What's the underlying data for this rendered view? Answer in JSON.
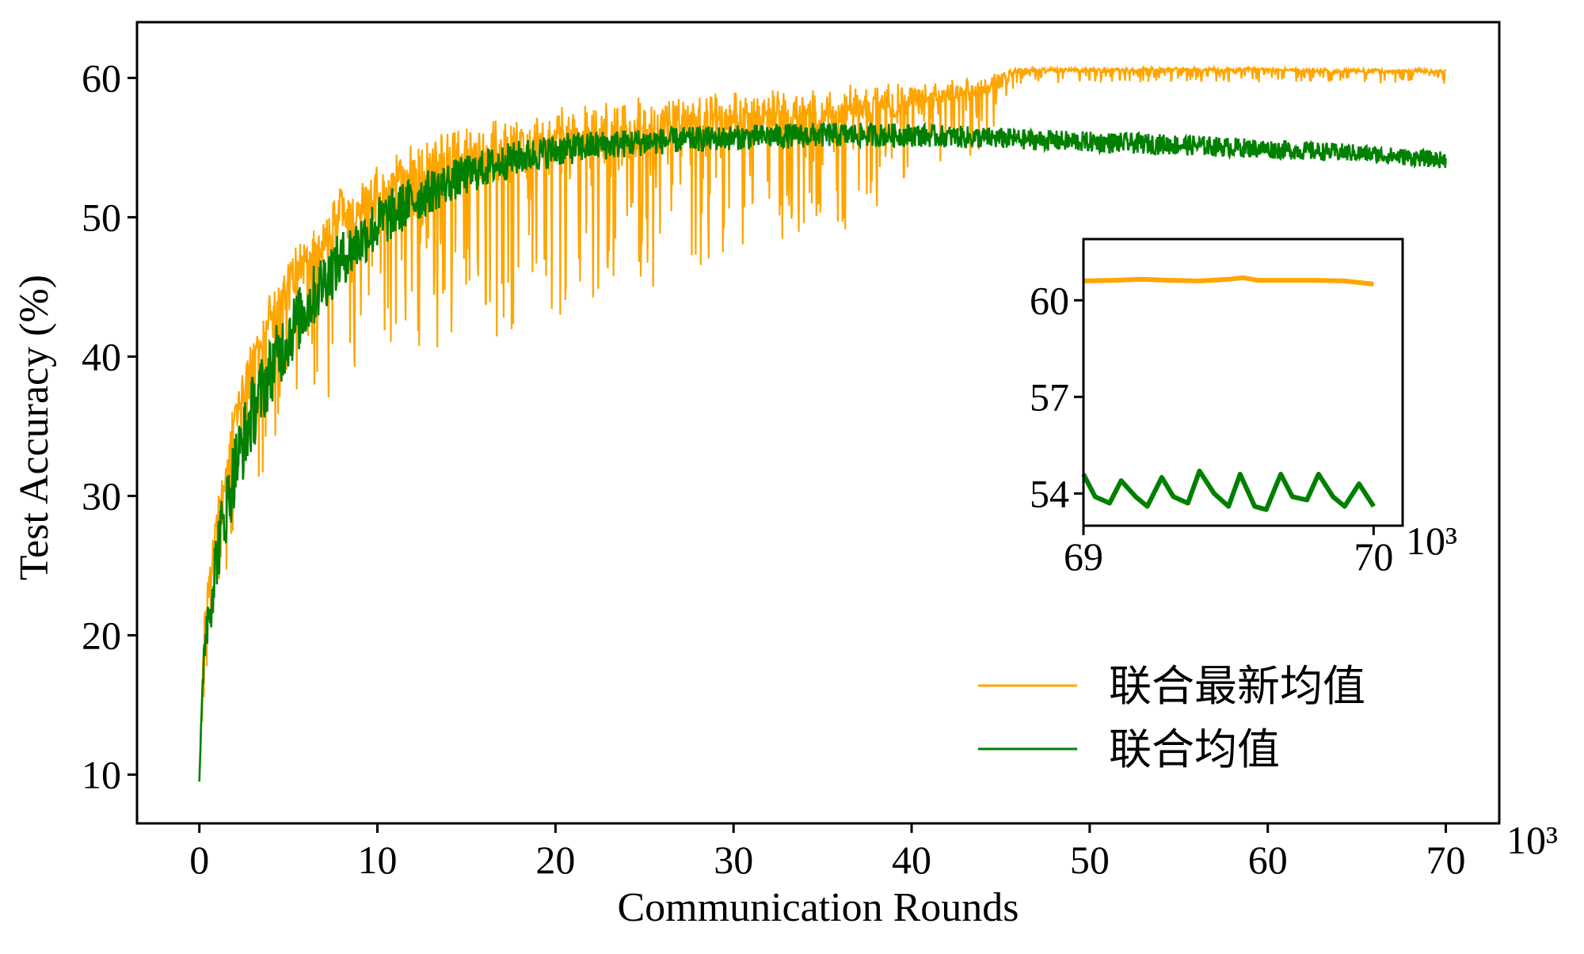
{
  "chart_data": [
    {
      "type": "line",
      "title": "",
      "xlabel": "Communication Rounds",
      "ylabel": "Test Accuracy (%)",
      "x_multiplier_label": "10³",
      "xlim": [
        -3.5,
        73
      ],
      "ylim": [
        6.5,
        64
      ],
      "x_ticks": [
        0,
        10,
        20,
        30,
        40,
        50,
        60,
        70
      ],
      "y_ticks": [
        10,
        20,
        30,
        40,
        50,
        60
      ],
      "grid": false,
      "legend_position": "lower-right",
      "x": [
        0,
        0.3,
        0.7,
        1,
        1.5,
        2,
        3,
        4,
        5,
        6,
        7,
        8,
        10,
        12,
        14,
        16,
        18,
        20,
        22,
        25,
        28,
        30,
        32,
        35,
        38,
        40,
        42,
        44,
        46,
        48,
        50,
        55,
        60,
        65,
        70
      ],
      "series": [
        {
          "name": "联合最新均值",
          "color": "#FFA500",
          "noise_amplitude": [
            0,
            6,
            8,
            8,
            9,
            9,
            10,
            11,
            12,
            12,
            13,
            13,
            14,
            15,
            15,
            15,
            15,
            14,
            14,
            13,
            12,
            11,
            10,
            10,
            9,
            7,
            6,
            5,
            1.2,
            1,
            1,
            1,
            1,
            1,
            1
          ],
          "values": [
            9.5,
            22,
            26,
            29,
            33,
            37,
            41,
            44,
            46.5,
            48.5,
            50,
            51.5,
            53,
            54.5,
            55.5,
            56,
            56.5,
            57,
            57.3,
            57.7,
            58,
            58.2,
            58.5,
            58.8,
            59,
            59.2,
            59.5,
            59.8,
            60.7,
            60.7,
            60.7,
            60.7,
            60.7,
            60.6,
            60.6
          ]
        },
        {
          "name": "联合均值",
          "color": "#008000",
          "noise_amplitude": [
            0,
            4,
            4.5,
            5,
            5,
            5.5,
            5.5,
            5,
            5,
            4.5,
            4.5,
            4,
            4,
            3.5,
            3,
            2.8,
            2.5,
            2.4,
            2.2,
            2,
            1.8,
            1.8,
            1.8,
            1.8,
            1.7,
            1.7,
            1.6,
            1.6,
            1.5,
            1.5,
            1.5,
            1.5,
            1.4,
            1.3,
            1.2
          ],
          "values": [
            9.5,
            20,
            23,
            26,
            29,
            32,
            36,
            39,
            41.5,
            43.5,
            45.5,
            47,
            49.5,
            51.2,
            52.5,
            53.5,
            54.3,
            54.8,
            55.1,
            55.4,
            55.6,
            55.7,
            55.8,
            55.9,
            55.9,
            55.9,
            55.8,
            55.7,
            55.6,
            55.5,
            55.4,
            55.2,
            54.9,
            54.6,
            54.1
          ]
        }
      ]
    },
    {
      "type": "line",
      "title": "",
      "xlabel": "",
      "ylabel": "",
      "x_multiplier_label": "10³",
      "xlim": [
        69,
        70.1
      ],
      "ylim": [
        53.0,
        61.9
      ],
      "x_ticks": [
        69,
        70
      ],
      "y_ticks": [
        54,
        57,
        60
      ],
      "grid": false,
      "series": [
        {
          "name": "联合最新均值",
          "color": "#FFA500",
          "x": [
            69,
            69.1,
            69.2,
            69.3,
            69.4,
            69.5,
            69.55,
            69.6,
            69.7,
            69.8,
            69.9,
            70
          ],
          "values": [
            60.6,
            60.62,
            60.65,
            60.62,
            60.6,
            60.65,
            60.7,
            60.62,
            60.62,
            60.62,
            60.6,
            60.5
          ]
        },
        {
          "name": "联合均值",
          "color": "#008000",
          "x": [
            69,
            69.04,
            69.09,
            69.13,
            69.18,
            69.22,
            69.27,
            69.31,
            69.36,
            69.4,
            69.45,
            69.5,
            69.54,
            69.59,
            69.63,
            69.68,
            69.72,
            69.77,
            69.81,
            69.86,
            69.9,
            69.95,
            70
          ],
          "values": [
            54.6,
            53.9,
            53.7,
            54.4,
            53.9,
            53.6,
            54.5,
            53.9,
            53.7,
            54.7,
            54.0,
            53.6,
            54.6,
            53.6,
            53.5,
            54.6,
            53.9,
            53.8,
            54.6,
            53.9,
            53.6,
            54.3,
            53.6
          ]
        }
      ]
    }
  ]
}
